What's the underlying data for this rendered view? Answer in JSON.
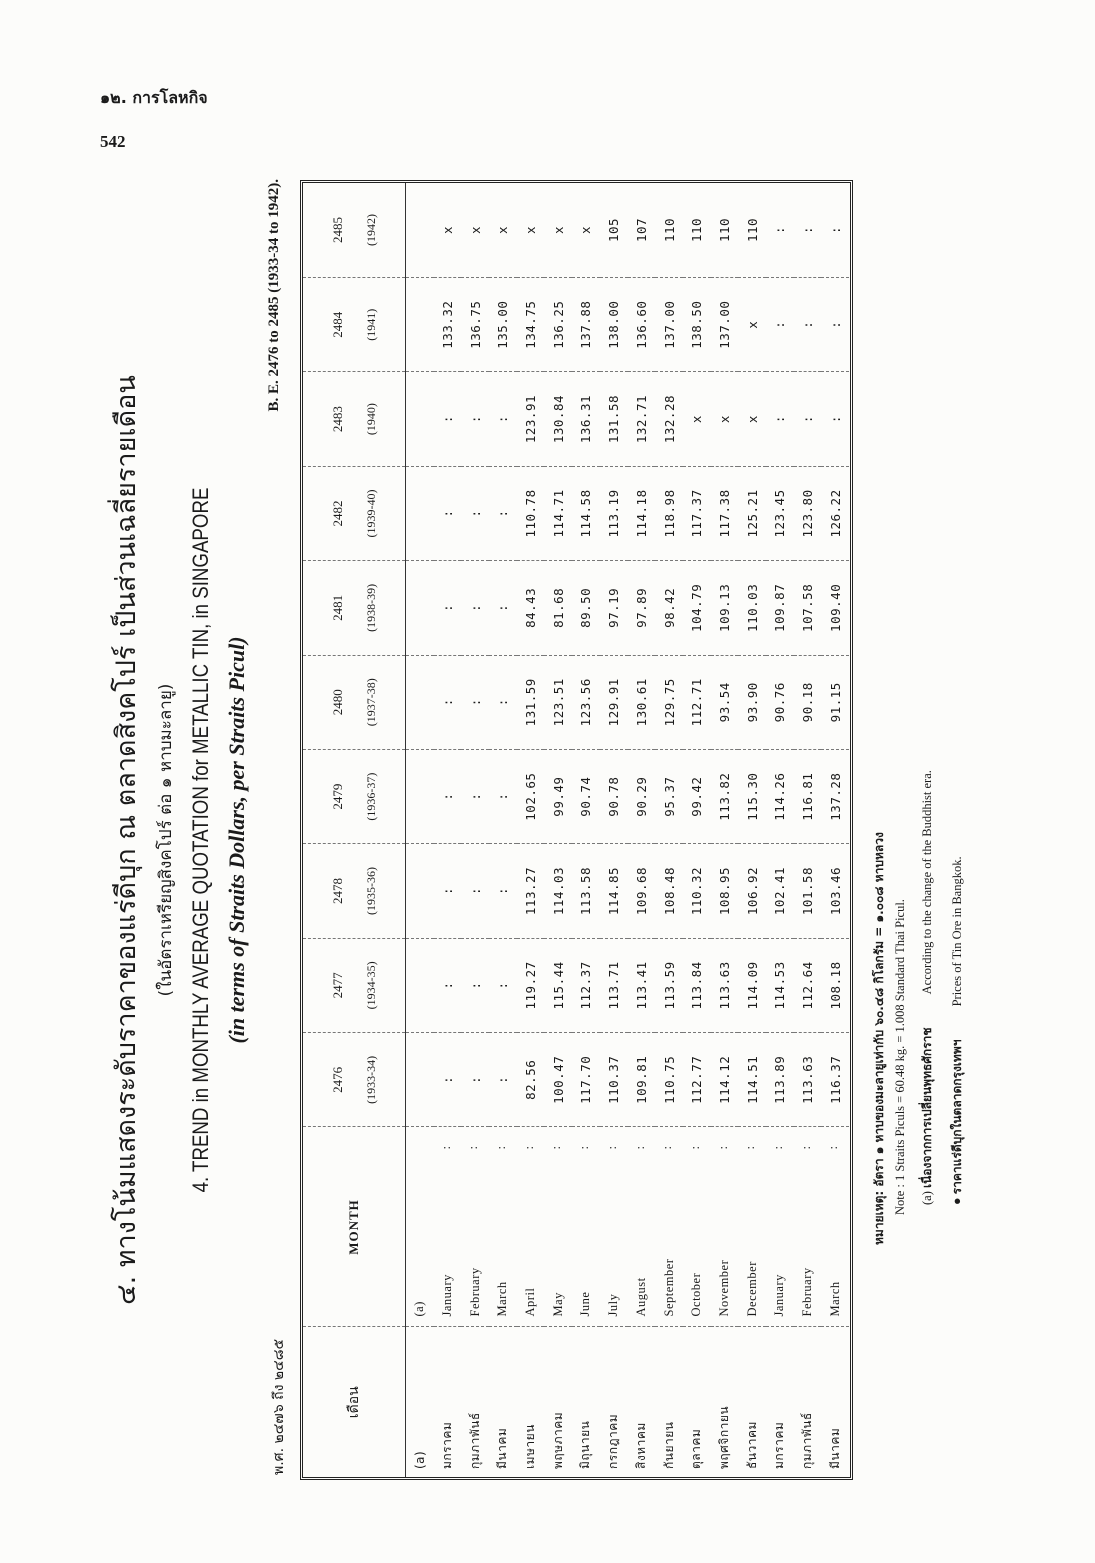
{
  "header": {
    "running_head": "๑๒. การโลหกิจ",
    "page_number": "542"
  },
  "title": {
    "thai": "๔. ทางโน้มแสดงระดับราคาของแร่ดีบุก ณ ตลาดสิงคโปร์ เป็นส่วนเฉลี่ยรายเดือน",
    "thai_sub": "(ในอัตราเหรียญสิงคโปร์ ต่อ ๑ หาบมะลายู)",
    "english": "4.  TREND in MONTHLY AVERAGE QUOTATION for METALLIC TIN, in SINGAPORE",
    "english_sub": "(in terms of Straits Dollars, per Straits Picul)",
    "range_thai": "พ.ศ. ๒๔๗๖ ถึง ๒๔๘๕",
    "range_english": "B. E. 2476 to 2485 (1933-34 to 1942)."
  },
  "table": {
    "header_thai": "เดือน",
    "header_english": "MONTH",
    "years": [
      {
        "be": "2476",
        "ce": "(1933-34)"
      },
      {
        "be": "2477",
        "ce": "(1934-35)"
      },
      {
        "be": "2478",
        "ce": "(1935-36)"
      },
      {
        "be": "2479",
        "ce": "(1936-37)"
      },
      {
        "be": "2480",
        "ce": "(1937-38)"
      },
      {
        "be": "2481",
        "ce": "(1938-39)"
      },
      {
        "be": "2482",
        "ce": "(1939-40)"
      },
      {
        "be": "2483",
        "ce": "(1940)"
      },
      {
        "be": "2484",
        "ce": "(1941)"
      },
      {
        "be": "2485",
        "ce": "(1942)"
      }
    ],
    "rows": [
      {
        "thai": "(a)",
        "english": "(a)",
        "ditto": "",
        "values": [
          "",
          "",
          "",
          "",
          "",
          "",
          "",
          "",
          "",
          ""
        ]
      },
      {
        "thai": "มกราคม",
        "english": "January",
        "ditto": ":",
        "values": [
          ":",
          ":",
          ":",
          ":",
          ":",
          ":",
          ":",
          ":",
          "133.32",
          "x"
        ]
      },
      {
        "thai": "กุมภาพันธ์",
        "english": "February",
        "ditto": ":",
        "values": [
          ":",
          ":",
          ":",
          ":",
          ":",
          ":",
          ":",
          ":",
          "136.75",
          "x"
        ]
      },
      {
        "thai": "มีนาคม",
        "english": "March",
        "ditto": ":",
        "values": [
          ":",
          ":",
          ":",
          ":",
          ":",
          ":",
          ":",
          ":",
          "135.00",
          "x"
        ]
      },
      {
        "thai": "เมษายน",
        "english": "April",
        "ditto": ":",
        "values": [
          "82.56",
          "119.27",
          "113.27",
          "102.65",
          "131.59",
          "84.43",
          "110.78",
          "123.91",
          "134.75",
          "x"
        ]
      },
      {
        "thai": "พฤษภาคม",
        "english": "May",
        "ditto": ":",
        "values": [
          "100.47",
          "115.44",
          "114.03",
          "99.49",
          "123.51",
          "81.68",
          "114.71",
          "130.84",
          "136.25",
          "x"
        ]
      },
      {
        "thai": "มิถุนายน",
        "english": "June",
        "ditto": ":",
        "values": [
          "117.70",
          "112.37",
          "113.58",
          "90.74",
          "123.56",
          "89.50",
          "114.58",
          "136.31",
          "137.88",
          "x"
        ]
      },
      {
        "thai": "กรกฎาคม",
        "english": "July",
        "ditto": ":",
        "values": [
          "110.37",
          "113.71",
          "114.85",
          "90.78",
          "129.91",
          "97.19",
          "113.19",
          "131.58",
          "138.00",
          "105"
        ]
      },
      {
        "thai": "สิงหาคม",
        "english": "August",
        "ditto": ":",
        "values": [
          "109.81",
          "113.41",
          "109.68",
          "90.29",
          "130.61",
          "97.89",
          "114.18",
          "132.71",
          "136.60",
          "107"
        ]
      },
      {
        "thai": "กันยายน",
        "english": "September",
        "ditto": ":",
        "values": [
          "110.75",
          "113.59",
          "108.48",
          "95.37",
          "129.75",
          "98.42",
          "118.98",
          "132.28",
          "137.00",
          "110"
        ]
      },
      {
        "thai": "ตุลาคม",
        "english": "October",
        "ditto": ":",
        "values": [
          "112.77",
          "113.84",
          "110.32",
          "99.42",
          "112.71",
          "104.79",
          "117.37",
          "x",
          "138.50",
          "110"
        ]
      },
      {
        "thai": "พฤศจิกายน",
        "english": "November",
        "ditto": ":",
        "values": [
          "114.12",
          "113.63",
          "108.95",
          "113.82",
          "93.54",
          "109.13",
          "117.38",
          "x",
          "137.00",
          "110"
        ]
      },
      {
        "thai": "ธันวาคม",
        "english": "December",
        "ditto": ":",
        "values": [
          "114.51",
          "114.09",
          "106.92",
          "115.30",
          "93.90",
          "110.03",
          "125.21",
          "x",
          "x",
          "110"
        ]
      },
      {
        "thai": "มกราคม",
        "english": "January",
        "ditto": ":",
        "values": [
          "113.89",
          "114.53",
          "102.41",
          "114.26",
          "90.76",
          "109.87",
          "123.45",
          ":",
          ":",
          ":"
        ]
      },
      {
        "thai": "กุมภาพันธ์",
        "english": "February",
        "ditto": ":",
        "values": [
          "113.63",
          "112.64",
          "101.58",
          "116.81",
          "90.18",
          "107.58",
          "123.80",
          ":",
          ":",
          ":"
        ]
      },
      {
        "thai": "มีนาคม",
        "english": "March",
        "ditto": ":",
        "values": [
          "116.37",
          "108.18",
          "103.46",
          "137.28",
          "91.15",
          "109.40",
          "126.22",
          ":",
          ":",
          ":"
        ]
      }
    ]
  },
  "footnotes": {
    "thai_note": "หมายเหตุ: อัตรา ๑ หาบของมะลายูเท่ากับ ๖๐.๔๘ กิโลกรัม = ๑.๐๐๘ หาบหลวง",
    "note": "Note : 1 Straits Piculs = 60.48 kg. = 1.008 Standard Thai Picul.",
    "a_marker": "(a)",
    "a_thai": "เนื่องจากการเปลี่ยนพุทธศักราช",
    "a_english": "According to the change of the Buddhist era.",
    "bullet_marker": "●",
    "bullet_thai": "ราคาแร่ดีบุกในตลาดกรุงเทพฯ",
    "bullet_english": "Prices of Tin Ore in Bangkok."
  }
}
